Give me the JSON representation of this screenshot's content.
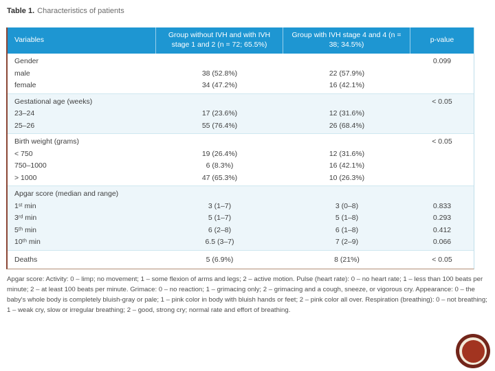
{
  "title": {
    "label": "Table 1.",
    "text": "Characteristics of patients"
  },
  "table": {
    "columns": [
      "Variables",
      "Group without IVH and with IVH stage 1 and 2 (n = 72; 65.5%)",
      "Group with IVH stage 4 and 4 (n = 38; 34.5%)",
      "p-value"
    ],
    "sections": [
      {
        "tint": false,
        "rows": [
          [
            "Gender",
            "",
            "",
            "0.099"
          ],
          [
            "male",
            "38 (52.8%)",
            "22 (57.9%)",
            ""
          ],
          [
            "female",
            "34 (47.2%)",
            "16 (42.1%)",
            ""
          ]
        ]
      },
      {
        "tint": true,
        "rows": [
          [
            "Gestational age (weeks)",
            "",
            "",
            "< 0.05"
          ],
          [
            "23–24",
            "17 (23.6%)",
            "12 (31.6%)",
            ""
          ],
          [
            "25–26",
            "55 (76.4%)",
            "26 (68.4%)",
            ""
          ]
        ]
      },
      {
        "tint": false,
        "rows": [
          [
            "Birth weight (grams)",
            "",
            "",
            "< 0.05"
          ],
          [
            "< 750",
            "19 (26.4%)",
            "12 (31.6%)",
            ""
          ],
          [
            "750–1000",
            "6 (8.3%)",
            "16 (42.1%)",
            ""
          ],
          [
            "> 1000",
            "47 (65.3%)",
            "10 (26.3%)",
            ""
          ]
        ]
      },
      {
        "tint": true,
        "rows": [
          [
            "Apgar score (median and range)",
            "",
            "",
            ""
          ],
          [
            "1ˢᵗ min",
            "3 (1–7)",
            "3 (0–8)",
            "0.833"
          ],
          [
            "3ʳᵈ min",
            "5 (1–7)",
            "5 (1–8)",
            "0.293"
          ],
          [
            "5ᵗʰ min",
            "6 (2–8)",
            "6 (1–8)",
            "0.412"
          ],
          [
            "10ᵗʰ min",
            "6.5 (3–7)",
            "7 (2–9)",
            "0.066"
          ]
        ]
      },
      {
        "tint": false,
        "rows": [
          [
            "Deaths",
            "5 (6.9%)",
            "8 (21%)",
            "< 0.05"
          ]
        ]
      }
    ]
  },
  "footnote": "Apgar score: Activity: 0 – limp; no movement; 1 – some flexion of arms and legs; 2 – active motion. Pulse (heart rate): 0 – no heart rate; 1 – less than 100 beats per minute; 2 – at least 100 beats per minute. Grimace: 0 – no reaction; 1 – grimacing only; 2 – grimacing and a cough, sneeze, or vigorous cry. Appearance: 0 – the baby's whole body is completely bluish-gray or pale; 1 – pink color in body with bluish hands or feet; 2 – pink color all over. Respiration (breathing): 0 – not breathing; 1 – weak cry, slow or irregular breathing; 2 – good, strong cry; normal rate and effort of breathing.",
  "colors": {
    "header-blue": "#1e96d2",
    "tint-blue": "#edf6fa",
    "divider": "#cfe7f0",
    "border-light": "#bfdeea",
    "border-bottom": "#b18d74",
    "accent-maroon": "#8a4534",
    "circle-outer": "#72251a",
    "circle-ring": "#f3ead9",
    "circle-core": "#a23420",
    "text": "#3f3f3f"
  }
}
